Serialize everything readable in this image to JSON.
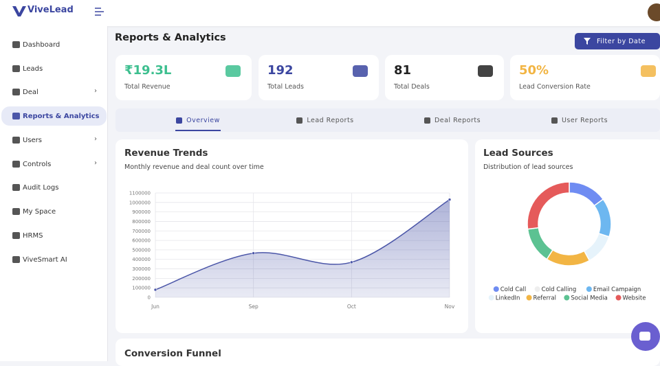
{
  "brand": "ViveLead",
  "sidebar": [
    "Dashboard",
    "Leads",
    "Deal",
    "Reports & Analytics",
    "Users",
    "Controls",
    "Audit Logs",
    "My Space",
    "HRMS",
    "ViveSmart AI"
  ],
  "page_title": "Reports & Analytics",
  "filter_button": "Filter by Date",
  "stats": [
    {
      "value": "₹19.3L",
      "label": "Total Revenue"
    },
    {
      "value": "192",
      "label": "Total Leads"
    },
    {
      "value": "81",
      "label": "Total Deals"
    },
    {
      "value": "50%",
      "label": "Lead Conversion Rate"
    }
  ],
  "tabs": [
    "Overview",
    "Lead Reports",
    "Deal Reports",
    "User Reports"
  ],
  "revenue_chart": {
    "type": "line",
    "title": "Revenue Trends",
    "subtitle": "Monthly revenue and deal count over time",
    "categories": [
      "Jun",
      "Sep",
      "Oct",
      "Nov"
    ],
    "values": [
      80000,
      465000,
      370000,
      1030000
    ],
    "color": "#4b56a8",
    "ylim": [
      0,
      1100000
    ],
    "yticks": [
      0,
      100000,
      200000,
      300000,
      400000,
      500000,
      600000,
      700000,
      800000,
      900000,
      1000000,
      1100000
    ],
    "grid": true
  },
  "lead_sources": {
    "type": "pie",
    "title": "Lead Sources",
    "subtitle": "Distribution of lead sources",
    "categories": [
      "Cold Call",
      "Cold Calling",
      "Email Campaign",
      "LinkedIn",
      "Referral",
      "Social Media",
      "Website"
    ],
    "values": [
      15,
      0,
      15,
      12,
      17,
      14,
      27
    ],
    "colors": [
      "#6f8cf2",
      "#eeeeee",
      "#6db7f0",
      "#e6f3fb",
      "#f2b544",
      "#5cc292",
      "#e55a5a"
    ]
  },
  "funnel": {
    "title": "Conversion Funnel"
  }
}
